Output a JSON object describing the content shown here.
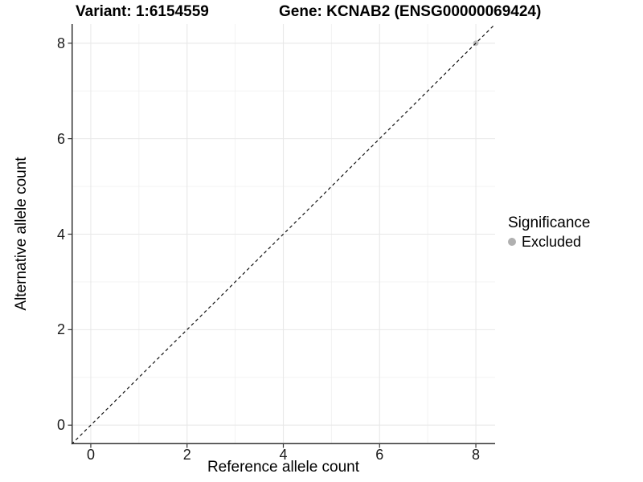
{
  "title": {
    "variant": "Variant: 1:6154559",
    "gene": "Gene: KCNAB2 (ENSG00000069424)"
  },
  "axes": {
    "x": {
      "label": "Reference allele count"
    },
    "y": {
      "label": "Alternative allele count"
    }
  },
  "legend": {
    "title": "Significance",
    "items": [
      {
        "label": "Excluded",
        "color": "#b0b0b0"
      }
    ]
  },
  "colors": {
    "background": "#ffffff",
    "axis_line": "#333333",
    "major_grid": "#e8e8e8",
    "minor_grid": "#f1f1f1",
    "reference_line": "#111111",
    "tick_text": "#1a1a1a",
    "point": "#bdbdbd"
  },
  "chart_data": {
    "type": "scatter",
    "title": "Variant: 1:6154559 | Gene: KCNAB2 (ENSG00000069424)",
    "xlabel": "Reference allele count",
    "ylabel": "Alternative allele count",
    "xlim": [
      -0.4,
      8.4
    ],
    "ylim": [
      -0.4,
      8.4
    ],
    "x_ticks": [
      0,
      2,
      4,
      6,
      8
    ],
    "y_ticks": [
      0,
      2,
      4,
      6,
      8
    ],
    "x_minor_ticks": [
      1,
      3,
      5,
      7
    ],
    "y_minor_ticks": [
      1,
      3,
      5,
      7
    ],
    "grid": "major+minor",
    "legend_position": "right",
    "series": [
      {
        "name": "Excluded",
        "color": "#bdbdbd",
        "points": [
          [
            8,
            8
          ]
        ]
      }
    ],
    "reference_line": {
      "type": "identity y=x",
      "style": "dashed",
      "color": "#111111",
      "from": [
        -0.4,
        -0.4
      ],
      "to": [
        8.4,
        8.4
      ]
    }
  }
}
